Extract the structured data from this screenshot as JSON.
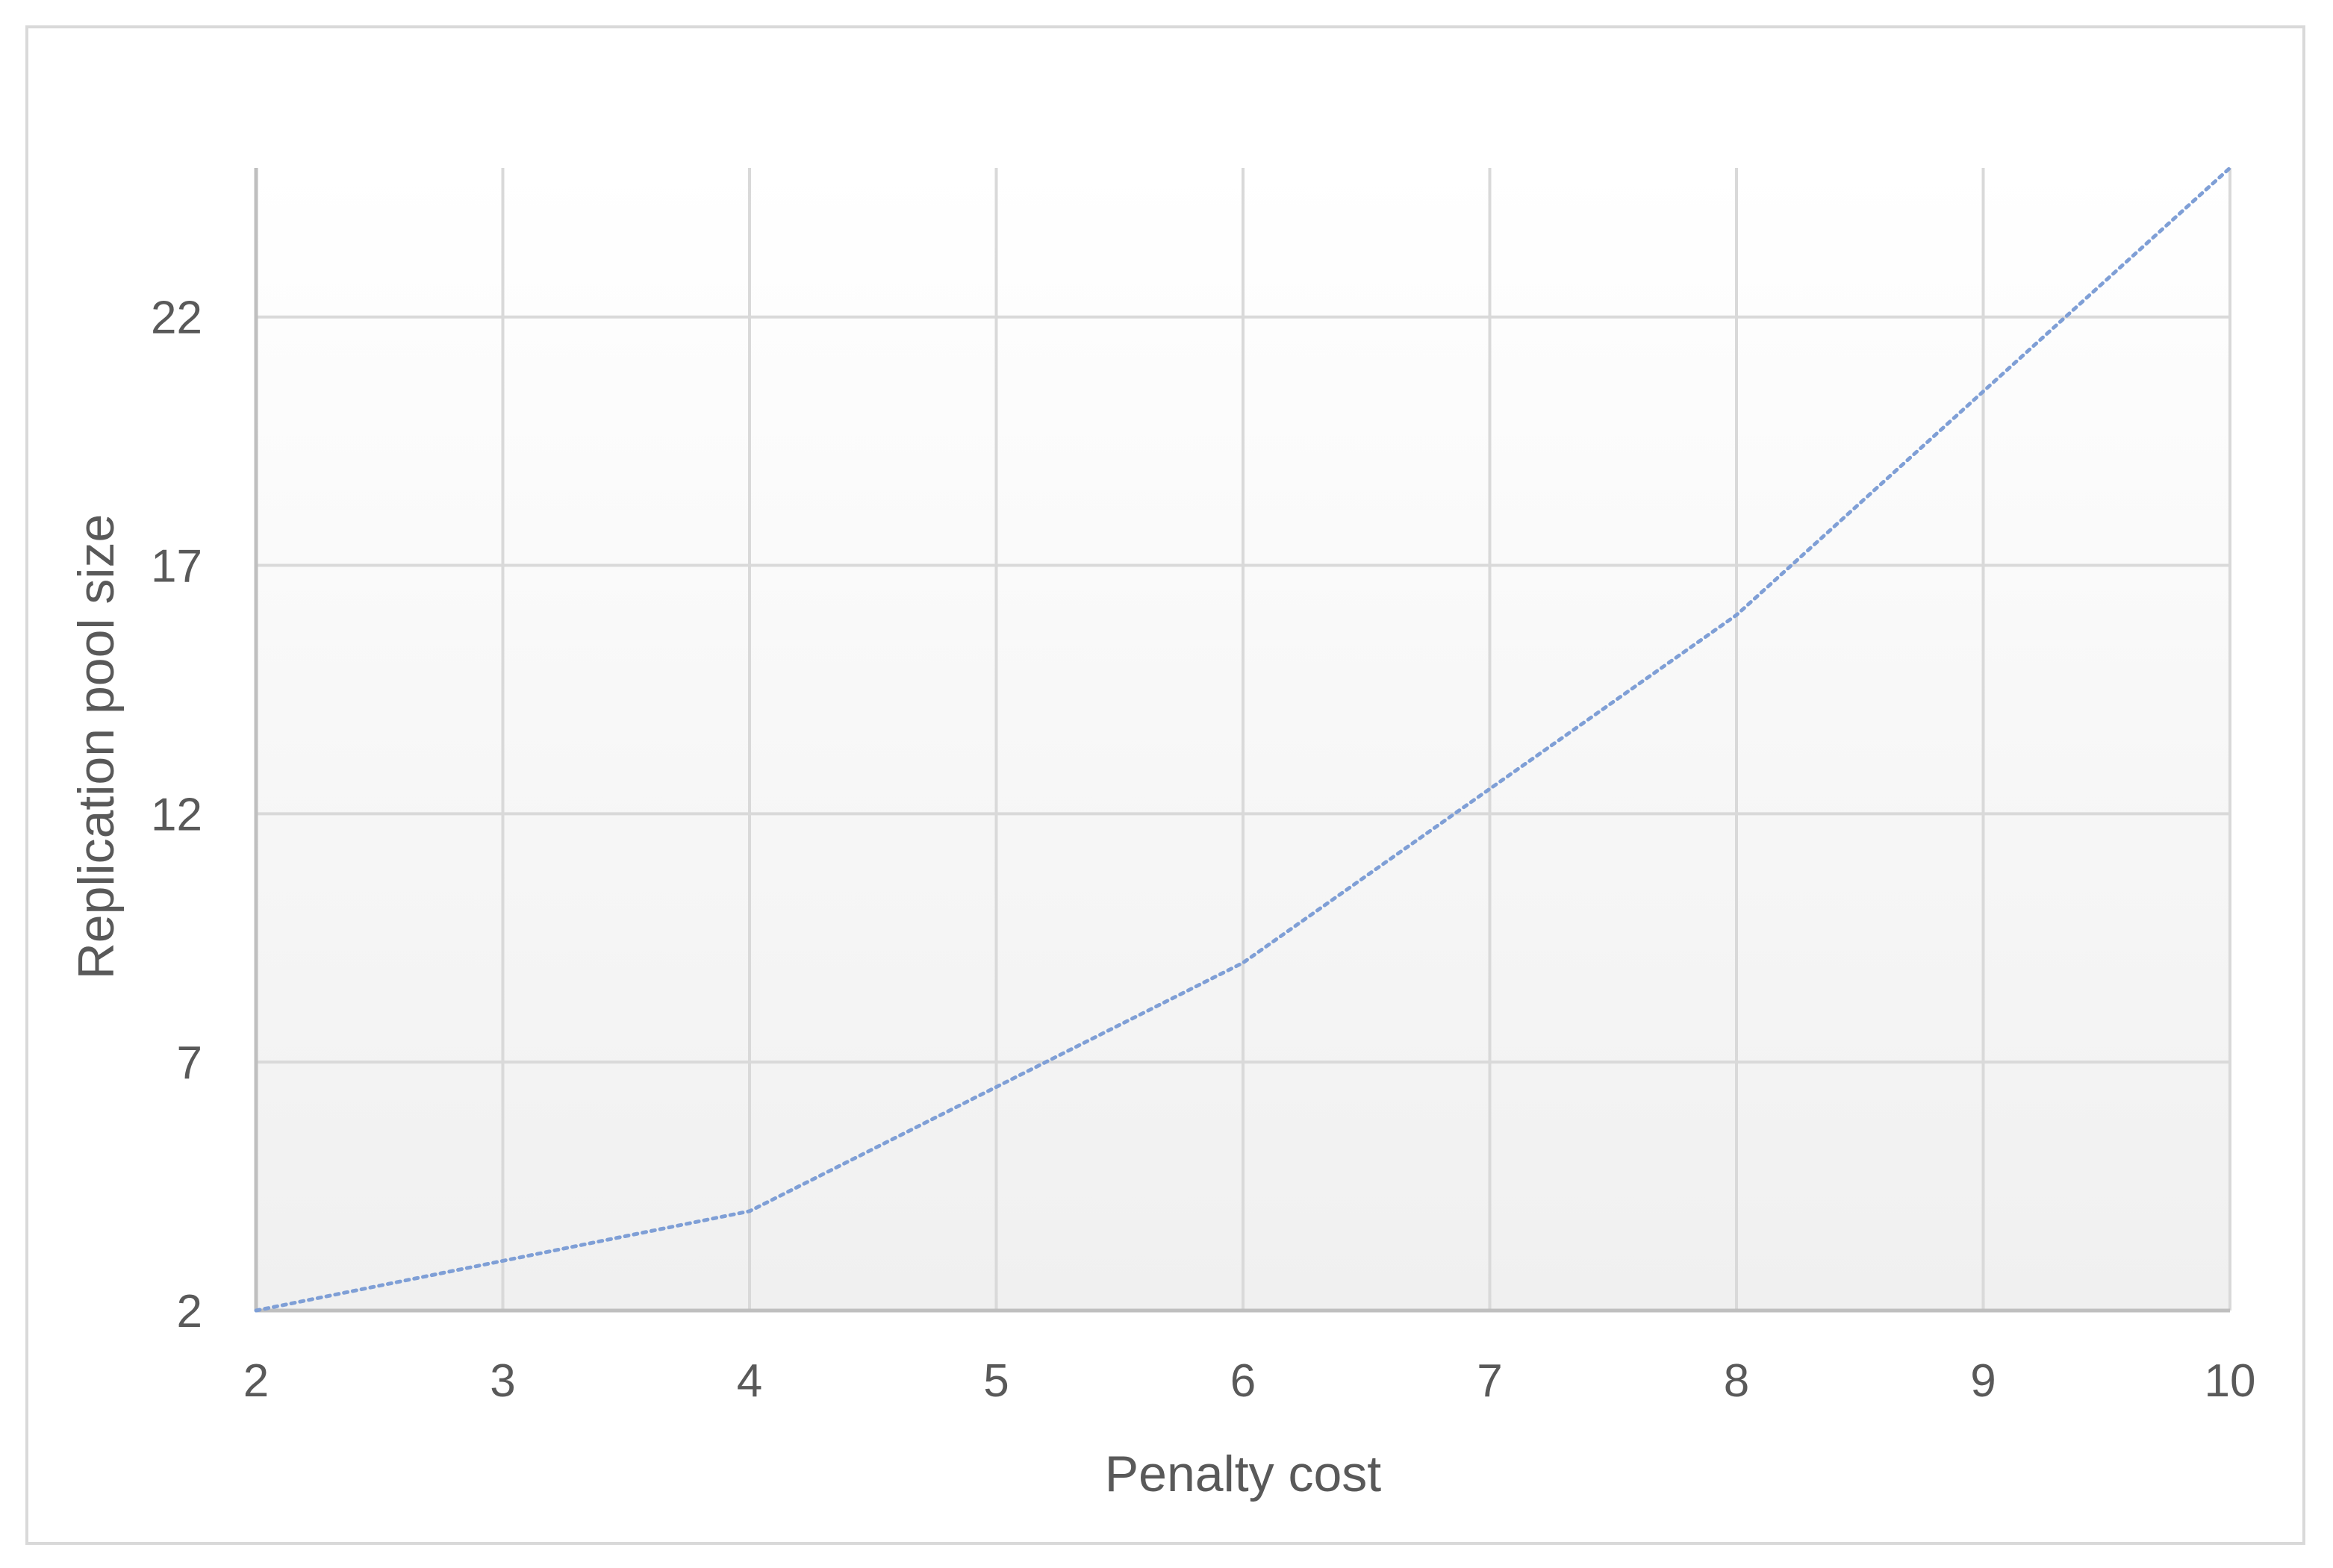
{
  "chart_data": {
    "type": "line",
    "title": "",
    "xlabel": "Penalty cost",
    "ylabel": "Replication pool size",
    "x_ticks": [
      2,
      3,
      4,
      5,
      6,
      7,
      8,
      9,
      10
    ],
    "y_ticks": [
      2,
      7,
      12,
      17,
      22
    ],
    "xlim": [
      2,
      10
    ],
    "ylim": [
      2,
      25
    ],
    "grid": true,
    "legend": "none",
    "series": [
      {
        "x": [
          2,
          3,
          4,
          5,
          6,
          7,
          8,
          9,
          10
        ],
        "y": [
          2,
          3,
          4,
          6.5,
          9,
          12.5,
          16,
          20.5,
          25
        ],
        "color": "#7f9fd6",
        "line_style": "dotted"
      }
    ],
    "colors": {
      "grid": "#d9d9d9",
      "axis": "#bfbfbf",
      "text": "#595959",
      "plot_gradient_top": "#ffffff",
      "plot_gradient_bottom": "#f0f0f0"
    }
  }
}
